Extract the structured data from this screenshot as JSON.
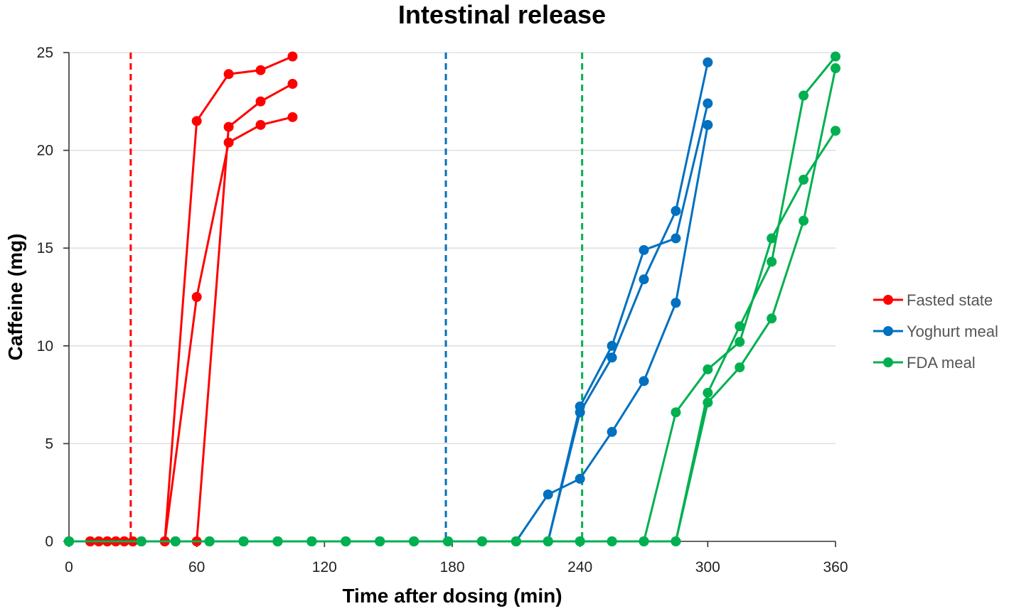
{
  "chart_data": {
    "type": "line",
    "title": "Intestinal release",
    "xlabel": "Time after dosing (min)",
    "ylabel": "Caffeine  (mg)",
    "xlim": [
      0,
      360
    ],
    "ylim": [
      0,
      25
    ],
    "xticks": [
      0,
      60,
      120,
      180,
      240,
      300,
      360
    ],
    "yticks": [
      0,
      5,
      10,
      15,
      20,
      25
    ],
    "grid": "horizontal",
    "legend_position": "right",
    "legend": [
      {
        "name": "Fasted state",
        "color": "#ff0000"
      },
      {
        "name": "Yoghurt meal",
        "color": "#0070c0"
      },
      {
        "name": "FDA meal",
        "color": "#00b050"
      }
    ],
    "reference_lines": [
      {
        "x": 29,
        "color": "#ff0000"
      },
      {
        "x": 177,
        "color": "#0070c0"
      },
      {
        "x": 241,
        "color": "#00b050"
      }
    ],
    "series": [
      {
        "group": "Fasted state",
        "color": "#ff0000",
        "points": [
          [
            0,
            0
          ],
          [
            10,
            0
          ],
          [
            14,
            0
          ],
          [
            18,
            0
          ],
          [
            22,
            0
          ],
          [
            26,
            0
          ],
          [
            30,
            0
          ],
          [
            45,
            0
          ],
          [
            60,
            21.5
          ],
          [
            75,
            23.9
          ],
          [
            90,
            24.1
          ],
          [
            105,
            24.8
          ]
        ]
      },
      {
        "group": "Fasted state",
        "color": "#ff0000",
        "points": [
          [
            0,
            0
          ],
          [
            10,
            0
          ],
          [
            14,
            0
          ],
          [
            18,
            0
          ],
          [
            22,
            0
          ],
          [
            26,
            0
          ],
          [
            30,
            0
          ],
          [
            45,
            0
          ],
          [
            60,
            12.5
          ],
          [
            75,
            20.4
          ],
          [
            90,
            21.3
          ],
          [
            105,
            21.7
          ]
        ]
      },
      {
        "group": "Fasted state",
        "color": "#ff0000",
        "points": [
          [
            0,
            0
          ],
          [
            10,
            0
          ],
          [
            14,
            0
          ],
          [
            18,
            0
          ],
          [
            22,
            0
          ],
          [
            26,
            0
          ],
          [
            30,
            0
          ],
          [
            45,
            0
          ],
          [
            60,
            0
          ],
          [
            75,
            21.2
          ],
          [
            90,
            22.5
          ],
          [
            105,
            23.4
          ]
        ]
      },
      {
        "group": "Yoghurt meal",
        "color": "#0070c0",
        "points": [
          [
            0,
            0
          ],
          [
            34,
            0
          ],
          [
            50,
            0
          ],
          [
            66,
            0
          ],
          [
            82,
            0
          ],
          [
            98,
            0
          ],
          [
            114,
            0
          ],
          [
            130,
            0
          ],
          [
            146,
            0
          ],
          [
            162,
            0
          ],
          [
            178,
            0
          ],
          [
            194,
            0
          ],
          [
            210,
            0
          ],
          [
            225,
            0
          ],
          [
            240,
            6.9
          ],
          [
            255,
            10
          ],
          [
            270,
            14.9
          ],
          [
            285,
            15.5
          ],
          [
            300,
            22.4
          ]
        ]
      },
      {
        "group": "Yoghurt meal",
        "color": "#0070c0",
        "points": [
          [
            0,
            0
          ],
          [
            34,
            0
          ],
          [
            50,
            0
          ],
          [
            66,
            0
          ],
          [
            82,
            0
          ],
          [
            98,
            0
          ],
          [
            114,
            0
          ],
          [
            130,
            0
          ],
          [
            146,
            0
          ],
          [
            162,
            0
          ],
          [
            178,
            0
          ],
          [
            194,
            0
          ],
          [
            210,
            0
          ],
          [
            225,
            2.4
          ],
          [
            240,
            3.2
          ],
          [
            255,
            5.6
          ],
          [
            270,
            8.2
          ],
          [
            285,
            12.2
          ],
          [
            300,
            21.3
          ]
        ]
      },
      {
        "group": "Yoghurt meal",
        "color": "#0070c0",
        "points": [
          [
            0,
            0
          ],
          [
            34,
            0
          ],
          [
            50,
            0
          ],
          [
            66,
            0
          ],
          [
            82,
            0
          ],
          [
            98,
            0
          ],
          [
            114,
            0
          ],
          [
            130,
            0
          ],
          [
            146,
            0
          ],
          [
            162,
            0
          ],
          [
            178,
            0
          ],
          [
            194,
            0
          ],
          [
            210,
            0
          ],
          [
            225,
            0
          ],
          [
            240,
            6.6
          ],
          [
            255,
            9.4
          ],
          [
            270,
            13.4
          ],
          [
            285,
            16.9
          ],
          [
            300,
            24.5
          ]
        ]
      },
      {
        "group": "FDA meal",
        "color": "#00b050",
        "points": [
          [
            0,
            0
          ],
          [
            34,
            0
          ],
          [
            50,
            0
          ],
          [
            66,
            0
          ],
          [
            82,
            0
          ],
          [
            98,
            0
          ],
          [
            114,
            0
          ],
          [
            130,
            0
          ],
          [
            146,
            0
          ],
          [
            162,
            0
          ],
          [
            178,
            0
          ],
          [
            194,
            0
          ],
          [
            210,
            0
          ],
          [
            225,
            0
          ],
          [
            240,
            0
          ],
          [
            255,
            0
          ],
          [
            270,
            0
          ],
          [
            285,
            6.6
          ],
          [
            300,
            8.8
          ],
          [
            315,
            10.2
          ],
          [
            330,
            15.5
          ],
          [
            345,
            18.5
          ],
          [
            360,
            21
          ]
        ]
      },
      {
        "group": "FDA meal",
        "color": "#00b050",
        "points": [
          [
            0,
            0
          ],
          [
            34,
            0
          ],
          [
            50,
            0
          ],
          [
            66,
            0
          ],
          [
            82,
            0
          ],
          [
            98,
            0
          ],
          [
            114,
            0
          ],
          [
            130,
            0
          ],
          [
            146,
            0
          ],
          [
            162,
            0
          ],
          [
            178,
            0
          ],
          [
            194,
            0
          ],
          [
            210,
            0
          ],
          [
            225,
            0
          ],
          [
            240,
            0
          ],
          [
            255,
            0
          ],
          [
            270,
            0
          ],
          [
            285,
            0
          ],
          [
            300,
            7.1
          ],
          [
            315,
            8.9
          ],
          [
            330,
            11.4
          ],
          [
            345,
            16.4
          ],
          [
            360,
            24.2
          ]
        ]
      },
      {
        "group": "FDA meal",
        "color": "#00b050",
        "points": [
          [
            0,
            0
          ],
          [
            34,
            0
          ],
          [
            50,
            0
          ],
          [
            66,
            0
          ],
          [
            82,
            0
          ],
          [
            98,
            0
          ],
          [
            114,
            0
          ],
          [
            130,
            0
          ],
          [
            146,
            0
          ],
          [
            162,
            0
          ],
          [
            178,
            0
          ],
          [
            194,
            0
          ],
          [
            210,
            0
          ],
          [
            225,
            0
          ],
          [
            240,
            0
          ],
          [
            255,
            0
          ],
          [
            270,
            0
          ],
          [
            285,
            0
          ],
          [
            300,
            7.6
          ],
          [
            315,
            11
          ],
          [
            330,
            14.3
          ],
          [
            345,
            22.8
          ],
          [
            360,
            24.8
          ]
        ]
      }
    ]
  }
}
